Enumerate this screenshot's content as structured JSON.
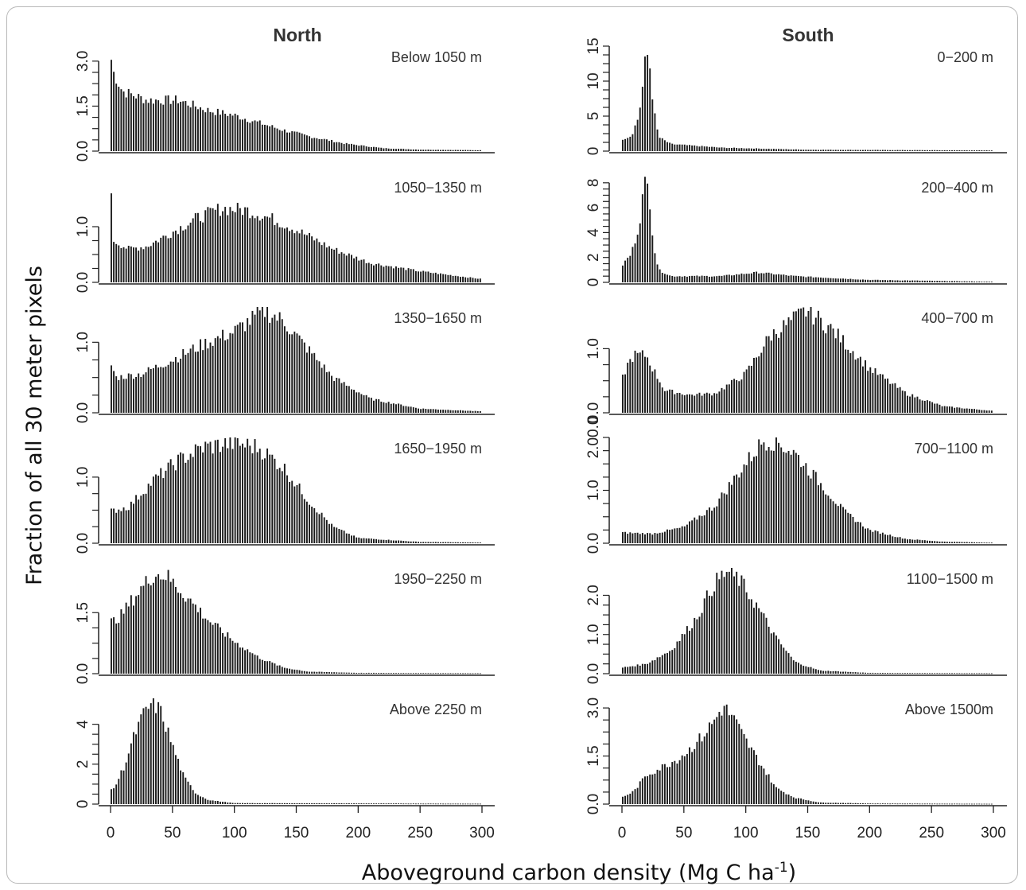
{
  "figure": {
    "xlabel": "Aboveground carbon density (Mg C ha",
    "xlabel_sup": "-1",
    "xlabel_end": ")",
    "ylabel": "Fraction of all 30 meter pixels",
    "col_titles": [
      "North",
      "South"
    ],
    "x_ticks": [
      "0",
      "50",
      "100",
      "150",
      "200",
      "250",
      "300"
    ]
  },
  "chart_data": [
    {
      "type": "bar",
      "column": "North",
      "label": "Below 1050 m",
      "xlim": [
        0,
        300
      ],
      "ylim": [
        0,
        3.5
      ],
      "yticks": [
        "0.0",
        "1.5",
        "3.0"
      ],
      "ytick_values": [
        0,
        1.5,
        3.0
      ],
      "x": [
        0,
        25,
        50,
        75,
        100,
        125,
        150,
        175,
        200,
        225,
        250,
        300
      ],
      "peaks": [
        [
          0,
          3.4
        ],
        [
          2,
          2.7
        ],
        [
          10,
          2.0
        ],
        [
          30,
          1.7
        ],
        [
          55,
          1.7
        ],
        [
          80,
          1.35
        ],
        [
          100,
          1.2
        ],
        [
          120,
          0.95
        ],
        [
          140,
          0.7
        ],
        [
          160,
          0.5
        ],
        [
          190,
          0.25
        ],
        [
          220,
          0.1
        ],
        [
          250,
          0.05
        ],
        [
          300,
          0.03
        ]
      ]
    },
    {
      "type": "bar",
      "column": "South",
      "label": "0−200 m",
      "xlim": [
        0,
        300
      ],
      "ylim": [
        0,
        15
      ],
      "yticks": [
        "0",
        "5",
        "10",
        "15"
      ],
      "ytick_values": [
        0,
        5,
        10,
        15
      ],
      "peaks": [
        [
          0,
          1.7
        ],
        [
          8,
          2.2
        ],
        [
          14,
          5.0
        ],
        [
          18,
          10.5
        ],
        [
          20,
          14.5
        ],
        [
          23,
          12.0
        ],
        [
          26,
          6.0
        ],
        [
          30,
          2.0
        ],
        [
          40,
          1.0
        ],
        [
          80,
          0.5
        ],
        [
          150,
          0.2
        ],
        [
          300,
          0.1
        ]
      ]
    },
    {
      "type": "bar",
      "column": "North",
      "label": "1050−1350 m",
      "xlim": [
        0,
        300
      ],
      "ylim": [
        0,
        1.9
      ],
      "yticks": [
        "0.0",
        "1.0"
      ],
      "ytick_values": [
        0,
        1.0
      ],
      "peaks": [
        [
          0,
          1.85
        ],
        [
          3,
          0.75
        ],
        [
          15,
          0.6
        ],
        [
          30,
          0.65
        ],
        [
          50,
          0.9
        ],
        [
          70,
          1.15
        ],
        [
          90,
          1.33
        ],
        [
          110,
          1.3
        ],
        [
          130,
          1.15
        ],
        [
          150,
          0.95
        ],
        [
          180,
          0.6
        ],
        [
          210,
          0.35
        ],
        [
          250,
          0.2
        ],
        [
          300,
          0.06
        ]
      ]
    },
    {
      "type": "bar",
      "column": "South",
      "label": "200−400 m",
      "xlim": [
        0,
        300
      ],
      "ylim": [
        0,
        8.5
      ],
      "yticks": [
        "0",
        "2",
        "4",
        "6",
        "8"
      ],
      "ytick_values": [
        0,
        2,
        4,
        6,
        8
      ],
      "peaks": [
        [
          0,
          1.3
        ],
        [
          8,
          2.3
        ],
        [
          14,
          4.5
        ],
        [
          18,
          7.5
        ],
        [
          20,
          8.3
        ],
        [
          23,
          6.5
        ],
        [
          26,
          3.0
        ],
        [
          30,
          1.0
        ],
        [
          40,
          0.5
        ],
        [
          80,
          0.5
        ],
        [
          110,
          0.8
        ],
        [
          140,
          0.5
        ],
        [
          200,
          0.2
        ],
        [
          300,
          0.05
        ]
      ]
    },
    {
      "type": "bar",
      "column": "North",
      "label": "1350−1650 m",
      "xlim": [
        0,
        300
      ],
      "ylim": [
        0,
        1.5
      ],
      "yticks": [
        "0.0",
        "1.0"
      ],
      "ytick_values": [
        0,
        1.0
      ],
      "peaks": [
        [
          0,
          0.72
        ],
        [
          5,
          0.5
        ],
        [
          25,
          0.55
        ],
        [
          50,
          0.75
        ],
        [
          75,
          0.97
        ],
        [
          100,
          1.15
        ],
        [
          125,
          1.45
        ],
        [
          140,
          1.3
        ],
        [
          160,
          0.9
        ],
        [
          180,
          0.5
        ],
        [
          210,
          0.2
        ],
        [
          250,
          0.06
        ],
        [
          300,
          0.02
        ]
      ]
    },
    {
      "type": "bar",
      "column": "South",
      "label": "400−700 m",
      "xlim": [
        0,
        300
      ],
      "ylim": [
        0,
        1.65
      ],
      "yticks": [
        "0.0",
        "1.0"
      ],
      "ytick_values": [
        0,
        1.0
      ],
      "peaks": [
        [
          0,
          0.5
        ],
        [
          5,
          0.75
        ],
        [
          10,
          0.9
        ],
        [
          20,
          0.9
        ],
        [
          25,
          0.7
        ],
        [
          35,
          0.35
        ],
        [
          55,
          0.28
        ],
        [
          75,
          0.3
        ],
        [
          100,
          0.6
        ],
        [
          120,
          1.2
        ],
        [
          150,
          1.6
        ],
        [
          170,
          1.3
        ],
        [
          200,
          0.7
        ],
        [
          230,
          0.3
        ],
        [
          260,
          0.1
        ],
        [
          300,
          0.03
        ]
      ]
    },
    {
      "type": "bar",
      "column": "North",
      "label": "1650−1950 m",
      "xlim": [
        0,
        300
      ],
      "ylim": [
        0,
        1.6
      ],
      "yticks": [
        "0.0",
        "1.0"
      ],
      "ytick_values": [
        0,
        1.0
      ],
      "peaks": [
        [
          0,
          0.48
        ],
        [
          15,
          0.55
        ],
        [
          35,
          0.95
        ],
        [
          55,
          1.25
        ],
        [
          75,
          1.45
        ],
        [
          100,
          1.52
        ],
        [
          120,
          1.45
        ],
        [
          140,
          1.15
        ],
        [
          160,
          0.65
        ],
        [
          180,
          0.25
        ],
        [
          200,
          0.08
        ],
        [
          250,
          0.02
        ],
        [
          300,
          0.01
        ]
      ]
    },
    {
      "type": "bar",
      "column": "South",
      "label": "700−1100 m",
      "xlim": [
        0,
        300
      ],
      "ylim": [
        0,
        2.0
      ],
      "yticks": [
        "0.0",
        "1.0",
        "2.00.0"
      ],
      "ytick_values": [
        0,
        1.0,
        2.0
      ],
      "peaks": [
        [
          0,
          0.2
        ],
        [
          25,
          0.18
        ],
        [
          50,
          0.3
        ],
        [
          75,
          0.7
        ],
        [
          100,
          1.5
        ],
        [
          115,
          1.95
        ],
        [
          125,
          1.92
        ],
        [
          140,
          1.7
        ],
        [
          160,
          1.15
        ],
        [
          180,
          0.6
        ],
        [
          200,
          0.25
        ],
        [
          230,
          0.08
        ],
        [
          260,
          0.03
        ],
        [
          300,
          0.01
        ]
      ]
    },
    {
      "type": "bar",
      "column": "North",
      "label": "1950−2250 m",
      "xlim": [
        0,
        300
      ],
      "ylim": [
        0,
        2.6
      ],
      "yticks": [
        "0.0",
        "1.5"
      ],
      "ytick_values": [
        0,
        1.5
      ],
      "peaks": [
        [
          0,
          1.25
        ],
        [
          8,
          1.4
        ],
        [
          20,
          1.9
        ],
        [
          35,
          2.45
        ],
        [
          45,
          2.42
        ],
        [
          60,
          1.95
        ],
        [
          80,
          1.3
        ],
        [
          100,
          0.8
        ],
        [
          120,
          0.4
        ],
        [
          140,
          0.15
        ],
        [
          160,
          0.05
        ],
        [
          200,
          0.02
        ],
        [
          300,
          0.01
        ]
      ]
    },
    {
      "type": "bar",
      "column": "South",
      "label": "1100−1500 m",
      "xlim": [
        0,
        300
      ],
      "ylim": [
        0,
        2.7
      ],
      "yticks": [
        "0.0",
        "1.0",
        "2.0"
      ],
      "ytick_values": [
        0,
        1.0,
        2.0
      ],
      "peaks": [
        [
          0,
          0.15
        ],
        [
          20,
          0.25
        ],
        [
          40,
          0.6
        ],
        [
          60,
          1.4
        ],
        [
          75,
          2.3
        ],
        [
          85,
          2.6
        ],
        [
          95,
          2.4
        ],
        [
          110,
          1.7
        ],
        [
          125,
          0.9
        ],
        [
          140,
          0.3
        ],
        [
          160,
          0.08
        ],
        [
          200,
          0.02
        ],
        [
          300,
          0.01
        ]
      ]
    },
    {
      "type": "bar",
      "column": "North",
      "label": "Above 2250 m",
      "xlim": [
        0,
        300
      ],
      "ylim": [
        0,
        5.3
      ],
      "yticks": [
        "0",
        "2",
        "4"
      ],
      "ytick_values": [
        0,
        2,
        4
      ],
      "peaks": [
        [
          0,
          0.6
        ],
        [
          5,
          1.0
        ],
        [
          12,
          2.0
        ],
        [
          20,
          3.5
        ],
        [
          28,
          4.6
        ],
        [
          35,
          5.1
        ],
        [
          42,
          4.5
        ],
        [
          50,
          3.0
        ],
        [
          60,
          1.3
        ],
        [
          70,
          0.5
        ],
        [
          80,
          0.2
        ],
        [
          100,
          0.05
        ],
        [
          300,
          0.02
        ]
      ]
    },
    {
      "type": "bar",
      "column": "South",
      "label": "Above 1500m",
      "xlim": [
        0,
        300
      ],
      "ylim": [
        0,
        3.3
      ],
      "yticks": [
        "0.0",
        "1.5",
        "3.0"
      ],
      "ytick_values": [
        0,
        1.5,
        3.0
      ],
      "peaks": [
        [
          0,
          0.2
        ],
        [
          10,
          0.4
        ],
        [
          20,
          0.9
        ],
        [
          30,
          1.1
        ],
        [
          45,
          1.4
        ],
        [
          55,
          1.7
        ],
        [
          65,
          2.1
        ],
        [
          75,
          2.6
        ],
        [
          82,
          3.05
        ],
        [
          90,
          2.7
        ],
        [
          100,
          2.0
        ],
        [
          115,
          1.1
        ],
        [
          125,
          0.5
        ],
        [
          140,
          0.2
        ],
        [
          160,
          0.05
        ],
        [
          200,
          0.02
        ],
        [
          300,
          0.01
        ]
      ]
    }
  ]
}
